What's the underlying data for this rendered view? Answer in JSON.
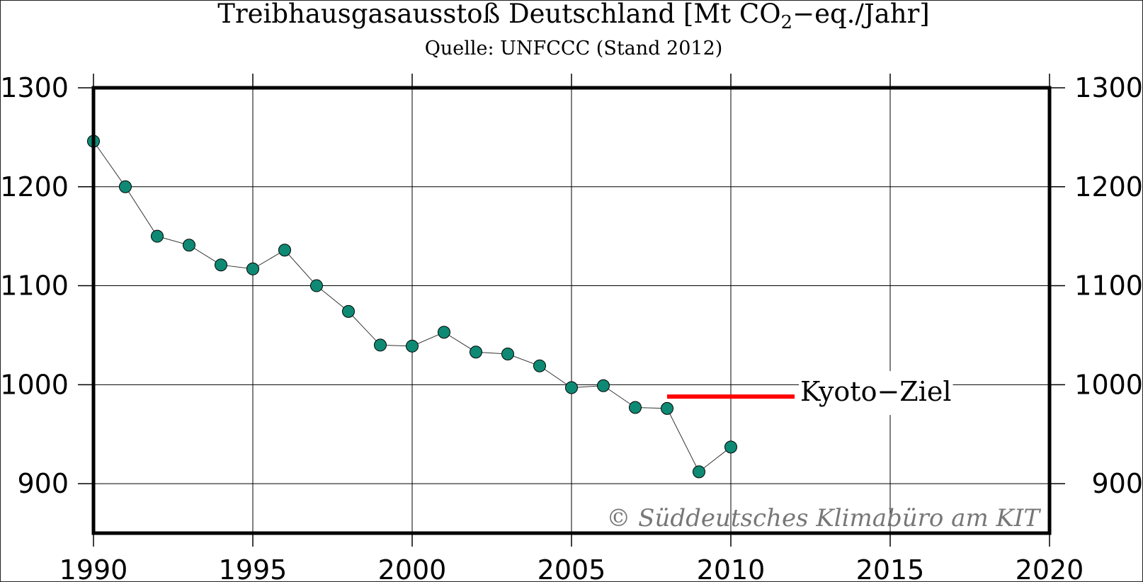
{
  "chart_data": {
    "type": "scatter",
    "title_main": "Treibhausgasausstoß Deutschland [Mt CO",
    "title_sub": "2",
    "title_end": "−eq./Jahr]",
    "subtitle": "Quelle: UNFCCC (Stand 2012)",
    "xlabel": "",
    "ylabel": "",
    "xlim": [
      1990,
      2020
    ],
    "ylim": [
      850,
      1300
    ],
    "x_ticks": [
      "1990",
      "1995",
      "2000",
      "2005",
      "2010",
      "2015",
      "2020"
    ],
    "y_ticks": [
      "900",
      "1000",
      "1100",
      "1200",
      "1300"
    ],
    "grid": true,
    "series": [
      {
        "x": [
          1990,
          1991,
          1992,
          1993,
          1994,
          1995,
          1996,
          1997,
          1998,
          1999,
          2000,
          2001,
          2002,
          2003,
          2004,
          2005,
          2006,
          2007,
          2008,
          2009,
          2010
        ],
        "values": [
          1246,
          1200,
          1150,
          1141,
          1121,
          1117,
          1136,
          1100,
          1074,
          1040,
          1039,
          1053,
          1033,
          1031,
          1019,
          997,
          999,
          977,
          976,
          912,
          937
        ],
        "color": "#0e8a74"
      }
    ],
    "target": {
      "label": "Kyoto−Ziel",
      "value": 988,
      "x_start": 2008,
      "x_end": 2012,
      "color": "#ff0000"
    },
    "credit": "© Süddeutsches Klimabüro am KIT"
  }
}
